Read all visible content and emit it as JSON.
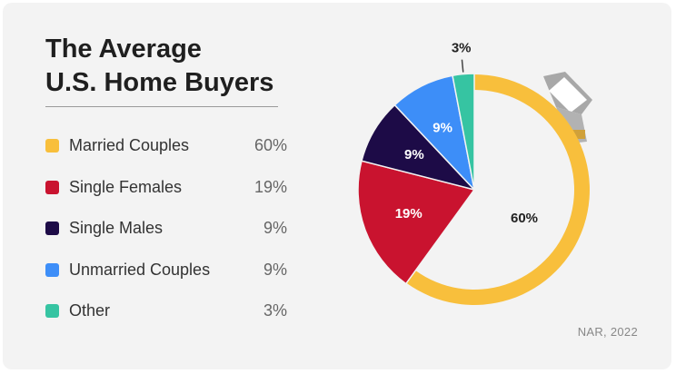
{
  "header": {
    "title_line1": "The Average",
    "title_line2": "U.S. Home Buyers"
  },
  "legend": [
    {
      "label": "Married Couples",
      "value": "60%",
      "color": "#f8bf3c"
    },
    {
      "label": "Single Females",
      "value": "19%",
      "color": "#c9132f"
    },
    {
      "label": "Single Males",
      "value": "9%",
      "color": "#1d0b47"
    },
    {
      "label": "Unmarried Couples",
      "value": "9%",
      "color": "#3d8ef8"
    },
    {
      "label": "Other",
      "value": "3%",
      "color": "#36c4a2"
    }
  ],
  "source": "NAR, 2022",
  "chart_data": {
    "type": "pie",
    "title": "The Average U.S. Home Buyers",
    "slices": [
      {
        "label": "Married Couples",
        "value": 60,
        "display": "60%",
        "color": "#f8bf3c"
      },
      {
        "label": "Single Females",
        "value": 19,
        "display": "19%",
        "color": "#c9132f"
      },
      {
        "label": "Single Males",
        "value": 9,
        "display": "9%",
        "color": "#1d0b47"
      },
      {
        "label": "Unmarried Couples",
        "value": 9,
        "display": "9%",
        "color": "#3d8ef8"
      },
      {
        "label": "Other",
        "value": 3,
        "display": "3%",
        "color": "#36c4a2"
      }
    ],
    "legend_position": "left",
    "decoration": "ring-gem-icon"
  }
}
